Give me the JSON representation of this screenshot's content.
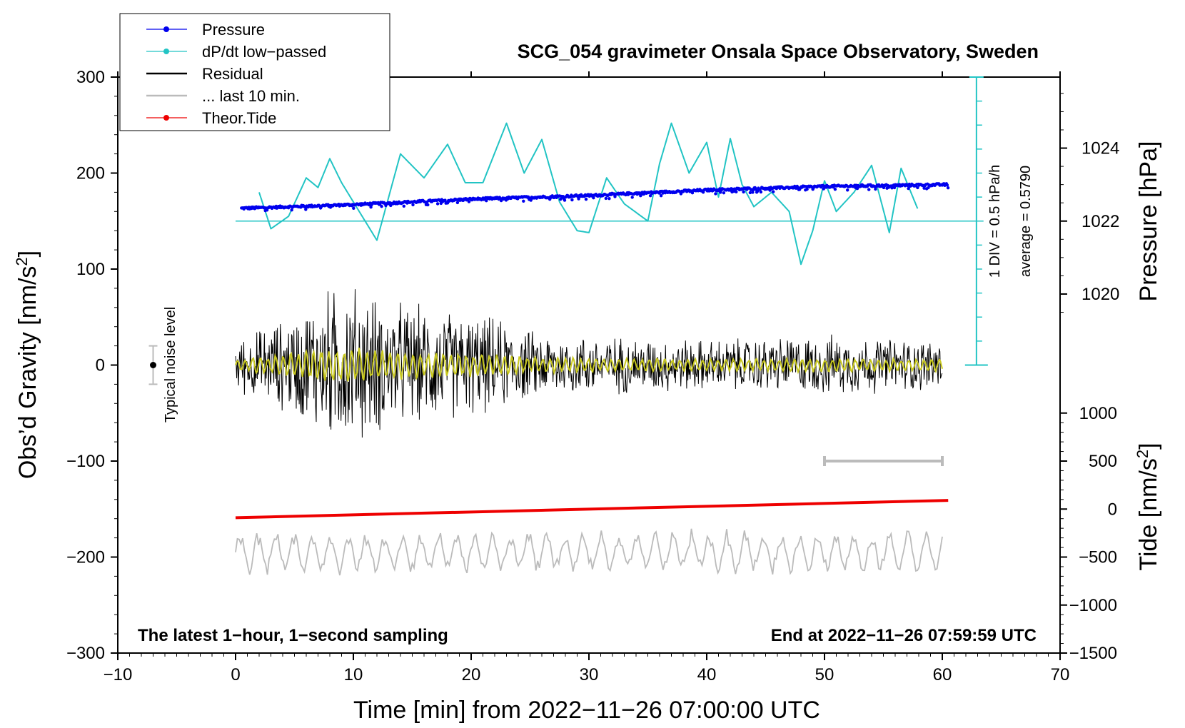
{
  "chart_data": {
    "type": "line",
    "title": "SCG_054 gravimeter Onsala Space Observatory, Sweden",
    "xlabel": "Time [min] from 2022−11−26 07:00:00 UTC",
    "ylabel": "Obs’d Gravity [nm/s²]",
    "xlim": [
      -10,
      70
    ],
    "ylim": [
      -300,
      300
    ],
    "x_ticks": [
      "−10",
      "0",
      "10",
      "20",
      "30",
      "40",
      "50",
      "60",
      "70"
    ],
    "y_ticks": [
      "300",
      "200",
      "100",
      "0",
      "−100",
      "−200",
      "−300"
    ],
    "right_axes": {
      "pressure": {
        "label": "Pressure [hPa]",
        "ticks": [
          "1024",
          "1022",
          "1020"
        ],
        "mapping": {
          "gravity_at_1022": 150,
          "gravity_per_hPa": 38
        }
      },
      "tide": {
        "label": "Tide [nm/s²]",
        "ticks": [
          "1000",
          "500",
          "0",
          "−500",
          "−1000",
          "−1500"
        ],
        "mapping": {
          "gravity_at_0": -150,
          "gravity_per_nm": 0.1
        }
      }
    },
    "legend": {
      "position": "top-left",
      "entries": [
        {
          "label": "Pressure",
          "color": "#0000ee",
          "marker": true
        },
        {
          "label": "dP/dt low−passed",
          "color": "#22c4c4",
          "marker": true
        },
        {
          "label": "Residual",
          "color": "#000000",
          "marker": false
        },
        {
          "label": "... last 10 min.",
          "color": "#bbbbbb",
          "marker": false
        },
        {
          "label": "Theor.Tide",
          "color": "#ee0000",
          "marker": true
        }
      ]
    },
    "annotations": {
      "noise_label": "Typical noise level",
      "noise_level": [
        -20,
        20
      ],
      "scale_bar_line1": "1 DIV = 0.5 hPa/h",
      "scale_bar_line2": "average = 0.5790",
      "dpdt_baseline": 150,
      "last10_bracket": [
        50,
        60
      ],
      "left_note": "The latest 1−hour, 1−second sampling",
      "right_note": "End at 2022−11−26 07:59:59 UTC"
    },
    "series": [
      {
        "name": "Pressure",
        "unit": "hPa",
        "x": [
          0.5,
          10,
          20,
          30,
          40,
          50,
          60.5
        ],
        "values": [
          1022.35,
          1022.45,
          1022.6,
          1022.7,
          1022.85,
          1022.95,
          1023.0
        ]
      },
      {
        "name": "dP/dt low−passed",
        "unit": "nm/s²",
        "x": [
          2,
          3,
          4.5,
          6,
          7,
          8,
          9,
          10.5,
          12,
          14,
          16,
          18,
          19.5,
          21,
          23,
          24.5,
          26,
          27.5,
          29,
          30,
          31.5,
          33,
          35,
          36,
          37,
          38.5,
          40,
          41,
          42,
          43,
          44,
          45.5,
          47,
          48,
          49,
          50,
          51,
          52.5,
          54,
          55.5,
          56.5,
          58
        ],
        "values": [
          180,
          142,
          155,
          195,
          185,
          215,
          190,
          160,
          130,
          220,
          195,
          230,
          190,
          190,
          252,
          200,
          235,
          170,
          140,
          138,
          195,
          168,
          150,
          210,
          252,
          200,
          232,
          175,
          236,
          188,
          165,
          180,
          160,
          105,
          140,
          192,
          160,
          180,
          208,
          138,
          205,
          160
        ]
      },
      {
        "name": "Residual",
        "unit": "nm/s²",
        "x": [
          0,
          5,
          8,
          10,
          12,
          15,
          20,
          22,
          25,
          30,
          40,
          50,
          60
        ],
        "amplitude": [
          30,
          60,
          90,
          95,
          80,
          70,
          60,
          55,
          40,
          35,
          30,
          35,
          30
        ],
        "values": [
          0,
          0,
          0,
          0,
          0,
          0,
          0,
          0,
          0,
          0,
          0,
          0,
          0
        ]
      },
      {
        "name": "... last 10 min.",
        "unit": "nm/s²",
        "x": [
          0,
          60
        ],
        "values": [
          -195,
          -195
        ],
        "amplitude": 25
      },
      {
        "name": "Theor.Tide",
        "unit": "nm/s²",
        "x": [
          0,
          60.5
        ],
        "values": [
          -90,
          90
        ]
      }
    ]
  },
  "colors": {
    "pressure": "#0000ee",
    "dpdt": "#22c4c4",
    "residual": "#000000",
    "last10": "#bbbbbb",
    "tide": "#ee0000",
    "filtered": "#c8c81e"
  }
}
